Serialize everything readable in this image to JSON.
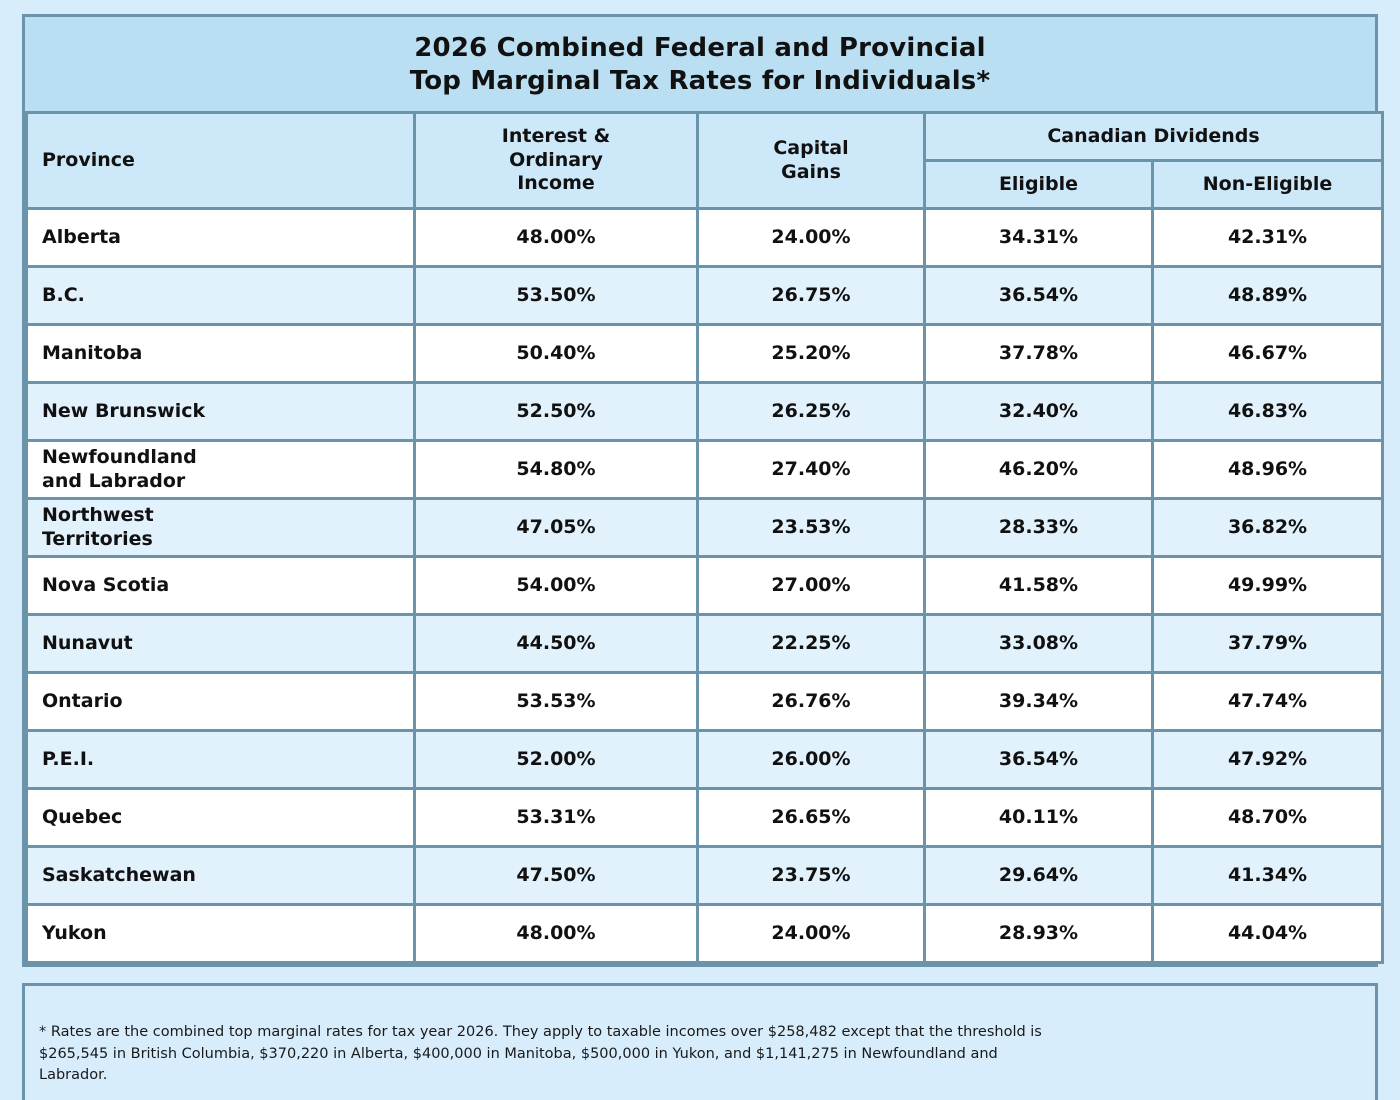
{
  "title": "2026 Combined Federal and Provincial\nTop Marginal Tax Rates for Individuals*",
  "table": {
    "headers": {
      "province": "Province",
      "interest": "Interest &\nOrdinary\nIncome",
      "capital_gains": "Capital\nGains",
      "dividends_group": "Canadian Dividends",
      "eligible": "Eligible",
      "non_eligible": "Non-Eligible"
    },
    "rows": [
      {
        "province": "Alberta",
        "interest": "48.00%",
        "capital_gains": "24.00%",
        "eligible": "34.31%",
        "non_eligible": "42.31%"
      },
      {
        "province": "B.C.",
        "interest": "53.50%",
        "capital_gains": "26.75%",
        "eligible": "36.54%",
        "non_eligible": "48.89%"
      },
      {
        "province": "Manitoba",
        "interest": "50.40%",
        "capital_gains": "25.20%",
        "eligible": "37.78%",
        "non_eligible": "46.67%"
      },
      {
        "province": "New Brunswick",
        "interest": "52.50%",
        "capital_gains": "26.25%",
        "eligible": "32.40%",
        "non_eligible": "46.83%"
      },
      {
        "province": "Newfoundland\nand Labrador",
        "interest": "54.80%",
        "capital_gains": "27.40%",
        "eligible": "46.20%",
        "non_eligible": "48.96%"
      },
      {
        "province": "Northwest\nTerritories",
        "interest": "47.05%",
        "capital_gains": "23.53%",
        "eligible": "28.33%",
        "non_eligible": "36.82%"
      },
      {
        "province": "Nova Scotia",
        "interest": "54.00%",
        "capital_gains": "27.00%",
        "eligible": "41.58%",
        "non_eligible": "49.99%"
      },
      {
        "province": "Nunavut",
        "interest": "44.50%",
        "capital_gains": "22.25%",
        "eligible": "33.08%",
        "non_eligible": "37.79%"
      },
      {
        "province": "Ontario",
        "interest": "53.53%",
        "capital_gains": "26.76%",
        "eligible": "39.34%",
        "non_eligible": "47.74%"
      },
      {
        "province": "P.E.I.",
        "interest": "52.00%",
        "capital_gains": "26.00%",
        "eligible": "36.54%",
        "non_eligible": "47.92%"
      },
      {
        "province": "Quebec",
        "interest": "53.31%",
        "capital_gains": "26.65%",
        "eligible": "40.11%",
        "non_eligible": "48.70%"
      },
      {
        "province": "Saskatchewan",
        "interest": "47.50%",
        "capital_gains": "23.75%",
        "eligible": "29.64%",
        "non_eligible": "41.34%"
      },
      {
        "province": "Yukon",
        "interest": "48.00%",
        "capital_gains": "24.00%",
        "eligible": "28.93%",
        "non_eligible": "44.04%"
      }
    ]
  },
  "footnote": "* Rates are the combined top marginal rates for tax year 2026. They apply to taxable incomes over $258,482 except that the threshold is\n$265,545 in British Columbia, $370,220 in Alberta, $400,000 in Manitoba, $500,000 in Yukon, and $1,141,275 in Newfoundland and\nLabrador.",
  "colors": {
    "page_background": "#d8edfb",
    "title_band": "#badef2",
    "header_background": "#cde9f9",
    "row_white": "#ffffff",
    "row_alt": "#e2f2fc",
    "border": "#6b93a9",
    "text": "#111111"
  }
}
